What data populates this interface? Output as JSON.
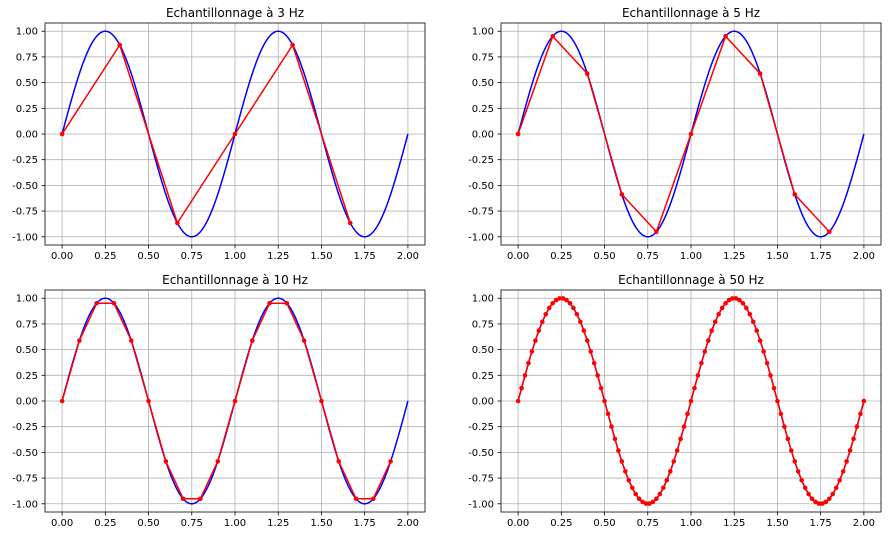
{
  "chart_data": [
    {
      "type": "line",
      "title": "Echantillonnage à 3 Hz",
      "sampling_hz": 3,
      "xlim": [
        0,
        2
      ],
      "ylim": [
        -1.08,
        1.08
      ],
      "grid": true,
      "xticks": [
        "0.00",
        "0.25",
        "0.50",
        "0.75",
        "1.00",
        "1.25",
        "1.50",
        "1.75",
        "2.00"
      ],
      "yticks": [
        "-1.00",
        "-0.75",
        "-0.50",
        "-0.25",
        "0.00",
        "0.25",
        "0.50",
        "0.75",
        "1.00"
      ],
      "series": [
        {
          "color": "#0000ff",
          "style": "continuous",
          "function": "sin(2*pi*t)",
          "t_range": [
            0,
            2
          ]
        },
        {
          "color": "#ff0000",
          "style": "sampled-with-markers",
          "x": [
            0,
            0.3333,
            0.6667,
            1.0,
            1.3333,
            1.6667
          ],
          "y": [
            0,
            0.866,
            -0.866,
            0,
            0.866,
            -0.866
          ]
        }
      ]
    },
    {
      "type": "line",
      "title": "Echantillonnage à 5 Hz",
      "sampling_hz": 5,
      "xlim": [
        0,
        2
      ],
      "ylim": [
        -1.08,
        1.08
      ],
      "grid": true,
      "xticks": [
        "0.00",
        "0.25",
        "0.50",
        "0.75",
        "1.00",
        "1.25",
        "1.50",
        "1.75",
        "2.00"
      ],
      "yticks": [
        "-1.00",
        "-0.75",
        "-0.50",
        "-0.25",
        "0.00",
        "0.25",
        "0.50",
        "0.75",
        "1.00"
      ],
      "series": [
        {
          "color": "#0000ff",
          "style": "continuous",
          "function": "sin(2*pi*t)",
          "t_range": [
            0,
            2
          ]
        },
        {
          "color": "#ff0000",
          "style": "sampled-with-markers",
          "x": [
            0,
            0.2,
            0.4,
            0.6,
            0.8,
            1.0,
            1.2,
            1.4,
            1.6,
            1.8
          ],
          "y": [
            0,
            0.951,
            0.588,
            -0.588,
            -0.951,
            0,
            0.951,
            0.588,
            -0.588,
            -0.951
          ]
        }
      ]
    },
    {
      "type": "line",
      "title": "Echantillonnage à 10 Hz",
      "sampling_hz": 10,
      "xlim": [
        0,
        2
      ],
      "ylim": [
        -1.08,
        1.08
      ],
      "grid": true,
      "xticks": [
        "0.00",
        "0.25",
        "0.50",
        "0.75",
        "1.00",
        "1.25",
        "1.50",
        "1.75",
        "2.00"
      ],
      "yticks": [
        "-1.00",
        "-0.75",
        "-0.50",
        "-0.25",
        "0.00",
        "0.25",
        "0.50",
        "0.75",
        "1.00"
      ],
      "series": [
        {
          "color": "#0000ff",
          "style": "continuous",
          "function": "sin(2*pi*t)",
          "t_range": [
            0,
            2
          ]
        },
        {
          "color": "#ff0000",
          "style": "sampled-with-markers",
          "x": [
            0,
            0.1,
            0.2,
            0.3,
            0.4,
            0.5,
            0.6,
            0.7,
            0.8,
            0.9,
            1.0,
            1.1,
            1.2,
            1.3,
            1.4,
            1.5,
            1.6,
            1.7,
            1.8,
            1.9
          ],
          "y": [
            0,
            0.588,
            0.951,
            0.951,
            0.588,
            0,
            -0.588,
            -0.951,
            -0.951,
            -0.588,
            0,
            0.588,
            0.951,
            0.951,
            0.588,
            0,
            -0.588,
            -0.951,
            -0.951,
            -0.588
          ]
        }
      ]
    },
    {
      "type": "line",
      "title": "Echantillonnage à 50 Hz",
      "sampling_hz": 50,
      "xlim": [
        0,
        2
      ],
      "ylim": [
        -1.08,
        1.08
      ],
      "grid": true,
      "xticks": [
        "0.00",
        "0.25",
        "0.50",
        "0.75",
        "1.00",
        "1.25",
        "1.50",
        "1.75",
        "2.00"
      ],
      "yticks": [
        "-1.00",
        "-0.75",
        "-0.50",
        "-0.25",
        "0.00",
        "0.25",
        "0.50",
        "0.75",
        "1.00"
      ],
      "series": [
        {
          "color": "#0000ff",
          "style": "continuous",
          "function": "sin(2*pi*t)",
          "t_range": [
            0,
            2
          ]
        },
        {
          "color": "#ff0000",
          "style": "sampled-with-markers",
          "x": [
            0,
            0.02,
            0.04,
            0.06,
            0.08,
            0.1,
            0.12,
            0.14,
            0.16,
            0.18,
            0.2,
            0.22,
            0.24,
            0.26,
            0.28,
            0.3,
            0.32,
            0.34,
            0.36,
            0.38,
            0.4,
            0.42,
            0.44,
            0.46,
            0.48,
            0.5,
            0.52,
            0.54,
            0.56,
            0.58,
            0.6,
            0.62,
            0.64,
            0.66,
            0.68,
            0.7,
            0.72,
            0.74,
            0.76,
            0.78,
            0.8,
            0.82,
            0.84,
            0.86,
            0.88,
            0.9,
            0.92,
            0.94,
            0.96,
            0.98,
            1.0,
            1.02,
            1.04,
            1.06,
            1.08,
            1.1,
            1.12,
            1.14,
            1.16,
            1.18,
            1.2,
            1.22,
            1.24,
            1.26,
            1.28,
            1.3,
            1.32,
            1.34,
            1.36,
            1.38,
            1.4,
            1.42,
            1.44,
            1.46,
            1.48,
            1.5,
            1.52,
            1.54,
            1.56,
            1.58,
            1.6,
            1.62,
            1.64,
            1.66,
            1.68,
            1.7,
            1.72,
            1.74,
            1.76,
            1.78,
            1.8,
            1.82,
            1.84,
            1.86,
            1.88,
            1.9,
            1.92,
            1.94,
            1.96,
            1.98,
            2.0
          ],
          "y": [
            0,
            0.125,
            0.249,
            0.368,
            0.482,
            0.588,
            0.685,
            0.771,
            0.844,
            0.905,
            0.951,
            0.982,
            0.998,
            0.998,
            0.982,
            0.951,
            0.905,
            0.844,
            0.771,
            0.685,
            0.588,
            0.482,
            0.368,
            0.249,
            0.125,
            0,
            -0.125,
            -0.249,
            -0.368,
            -0.482,
            -0.588,
            -0.685,
            -0.771,
            -0.844,
            -0.905,
            -0.951,
            -0.982,
            -0.998,
            -0.998,
            -0.982,
            -0.951,
            -0.905,
            -0.844,
            -0.771,
            -0.685,
            -0.588,
            -0.482,
            -0.368,
            -0.249,
            -0.125,
            0,
            0.125,
            0.249,
            0.368,
            0.482,
            0.588,
            0.685,
            0.771,
            0.844,
            0.905,
            0.951,
            0.982,
            0.998,
            0.998,
            0.982,
            0.951,
            0.905,
            0.844,
            0.771,
            0.685,
            0.588,
            0.482,
            0.368,
            0.249,
            0.125,
            0,
            -0.125,
            -0.249,
            -0.368,
            -0.482,
            -0.588,
            -0.685,
            -0.771,
            -0.844,
            -0.905,
            -0.951,
            -0.982,
            -0.998,
            -0.998,
            -0.982,
            -0.951,
            -0.905,
            -0.844,
            -0.771,
            -0.685,
            -0.588,
            -0.482,
            -0.368,
            -0.249,
            -0.125,
            0
          ]
        }
      ]
    }
  ]
}
